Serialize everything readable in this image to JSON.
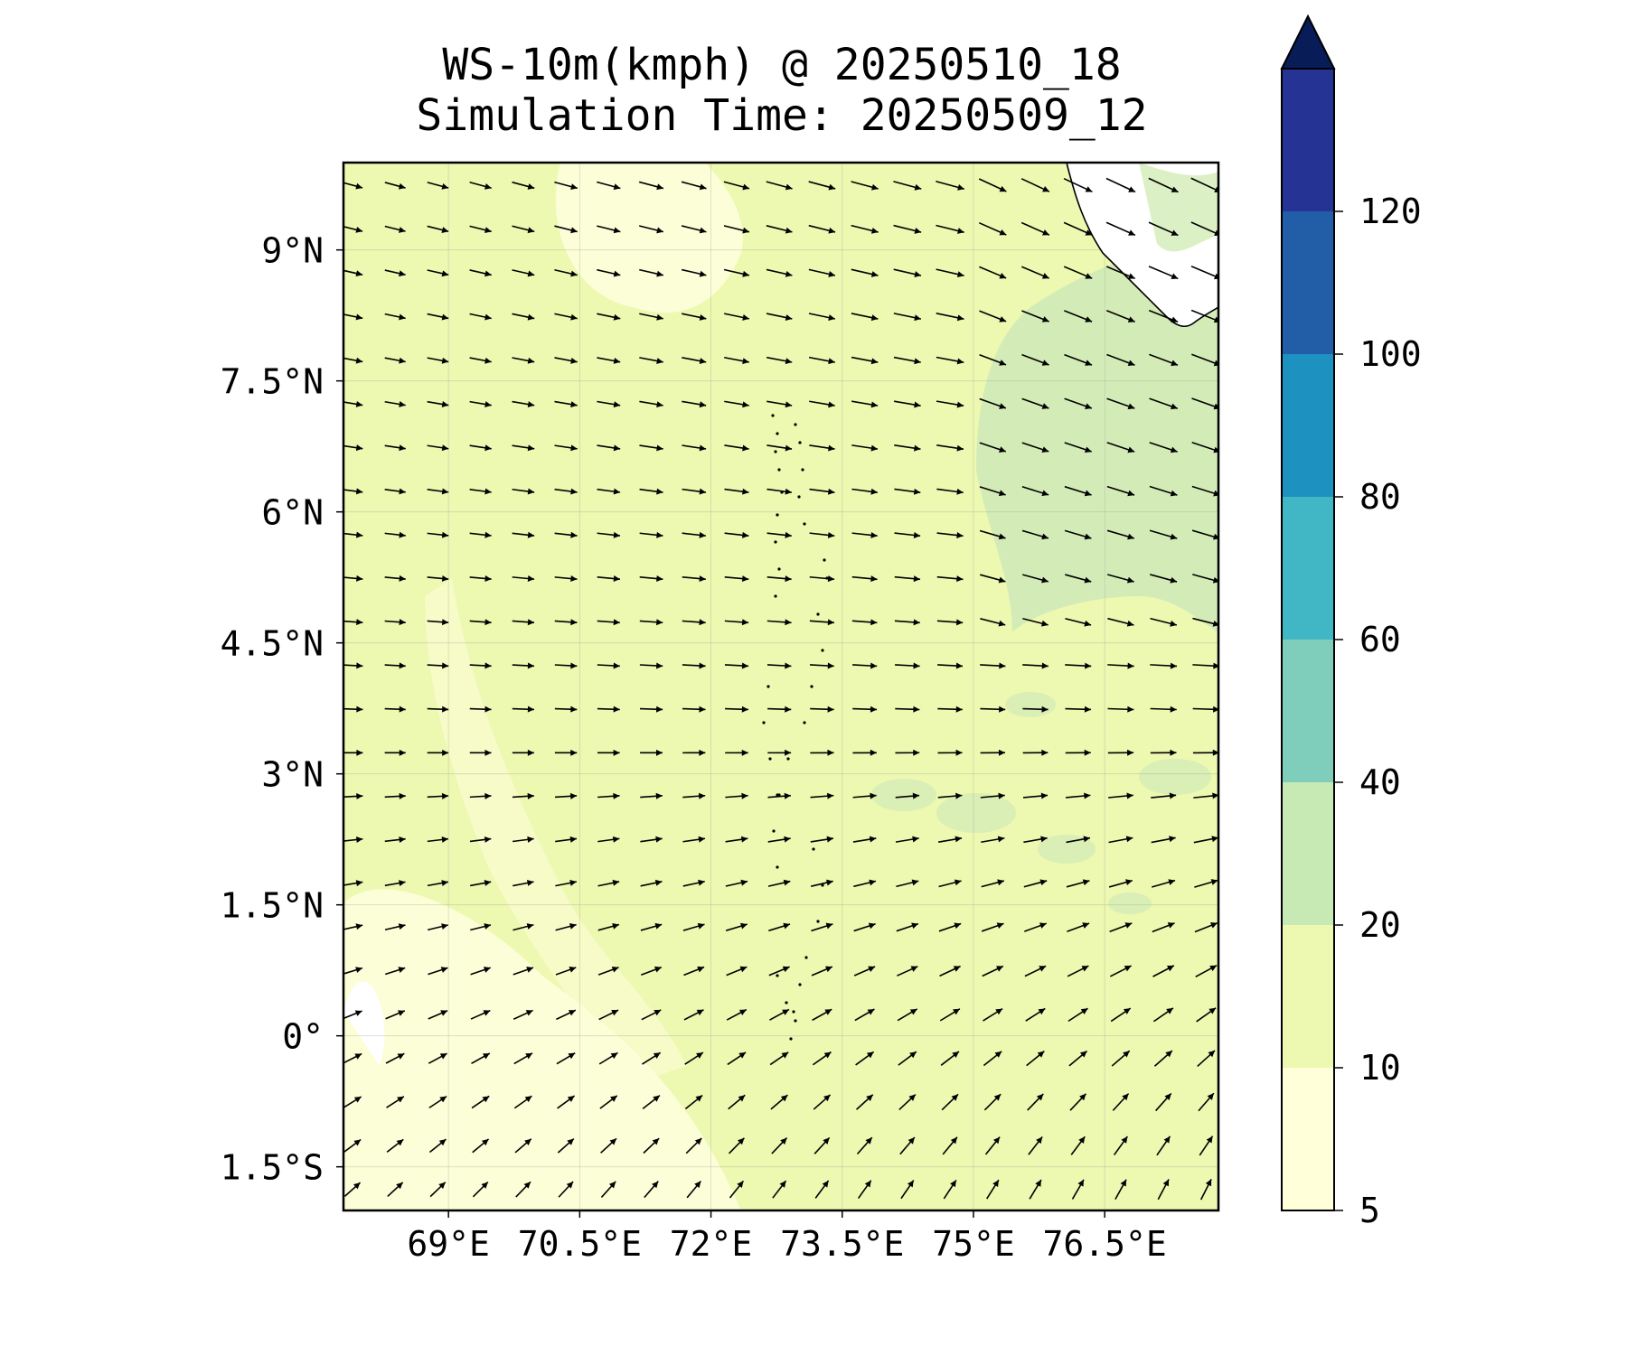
{
  "title": {
    "line1": "WS-10m(kmph) @ 20250510_18",
    "line2": "Simulation Time: 20250509_12"
  },
  "map": {
    "lon_range": [
      67.8,
      77.8
    ],
    "lat_range": [
      -2.0,
      10.0
    ],
    "lon_ticks": [
      {
        "value": 69.0,
        "label": "69°E"
      },
      {
        "value": 70.5,
        "label": "70.5°E"
      },
      {
        "value": 72.0,
        "label": "72°E"
      },
      {
        "value": 73.5,
        "label": "73.5°E"
      },
      {
        "value": 75.0,
        "label": "75°E"
      },
      {
        "value": 76.5,
        "label": "76.5°E"
      }
    ],
    "lat_ticks": [
      {
        "value": 9.0,
        "label": "9°N"
      },
      {
        "value": 7.5,
        "label": "7.5°N"
      },
      {
        "value": 6.0,
        "label": "6°N"
      },
      {
        "value": 4.5,
        "label": "4.5°N"
      },
      {
        "value": 3.0,
        "label": "3°N"
      },
      {
        "value": 1.5,
        "label": "1.5°N"
      },
      {
        "value": 0.0,
        "label": "0°"
      },
      {
        "value": -1.5,
        "label": "1.5°S"
      }
    ],
    "grid": true
  },
  "colorbar": {
    "levels": [
      5,
      10,
      20,
      40,
      60,
      80,
      100,
      120
    ],
    "colors": [
      "#ffffd9",
      "#edf8b1",
      "#c7e9b4",
      "#7fcdbb",
      "#41b6c4",
      "#1d91c0",
      "#225ea8",
      "#253494"
    ],
    "extend_color": "#081d58",
    "labels": [
      "5",
      "10",
      "20",
      "40",
      "60",
      "80",
      "100",
      "120"
    ]
  },
  "field": {
    "background_color": "#edf8b1",
    "calm_color": "#fbfed6",
    "strong_color": "#d3ecb7"
  },
  "vectors": {
    "rows": 24,
    "cols": 21
  }
}
